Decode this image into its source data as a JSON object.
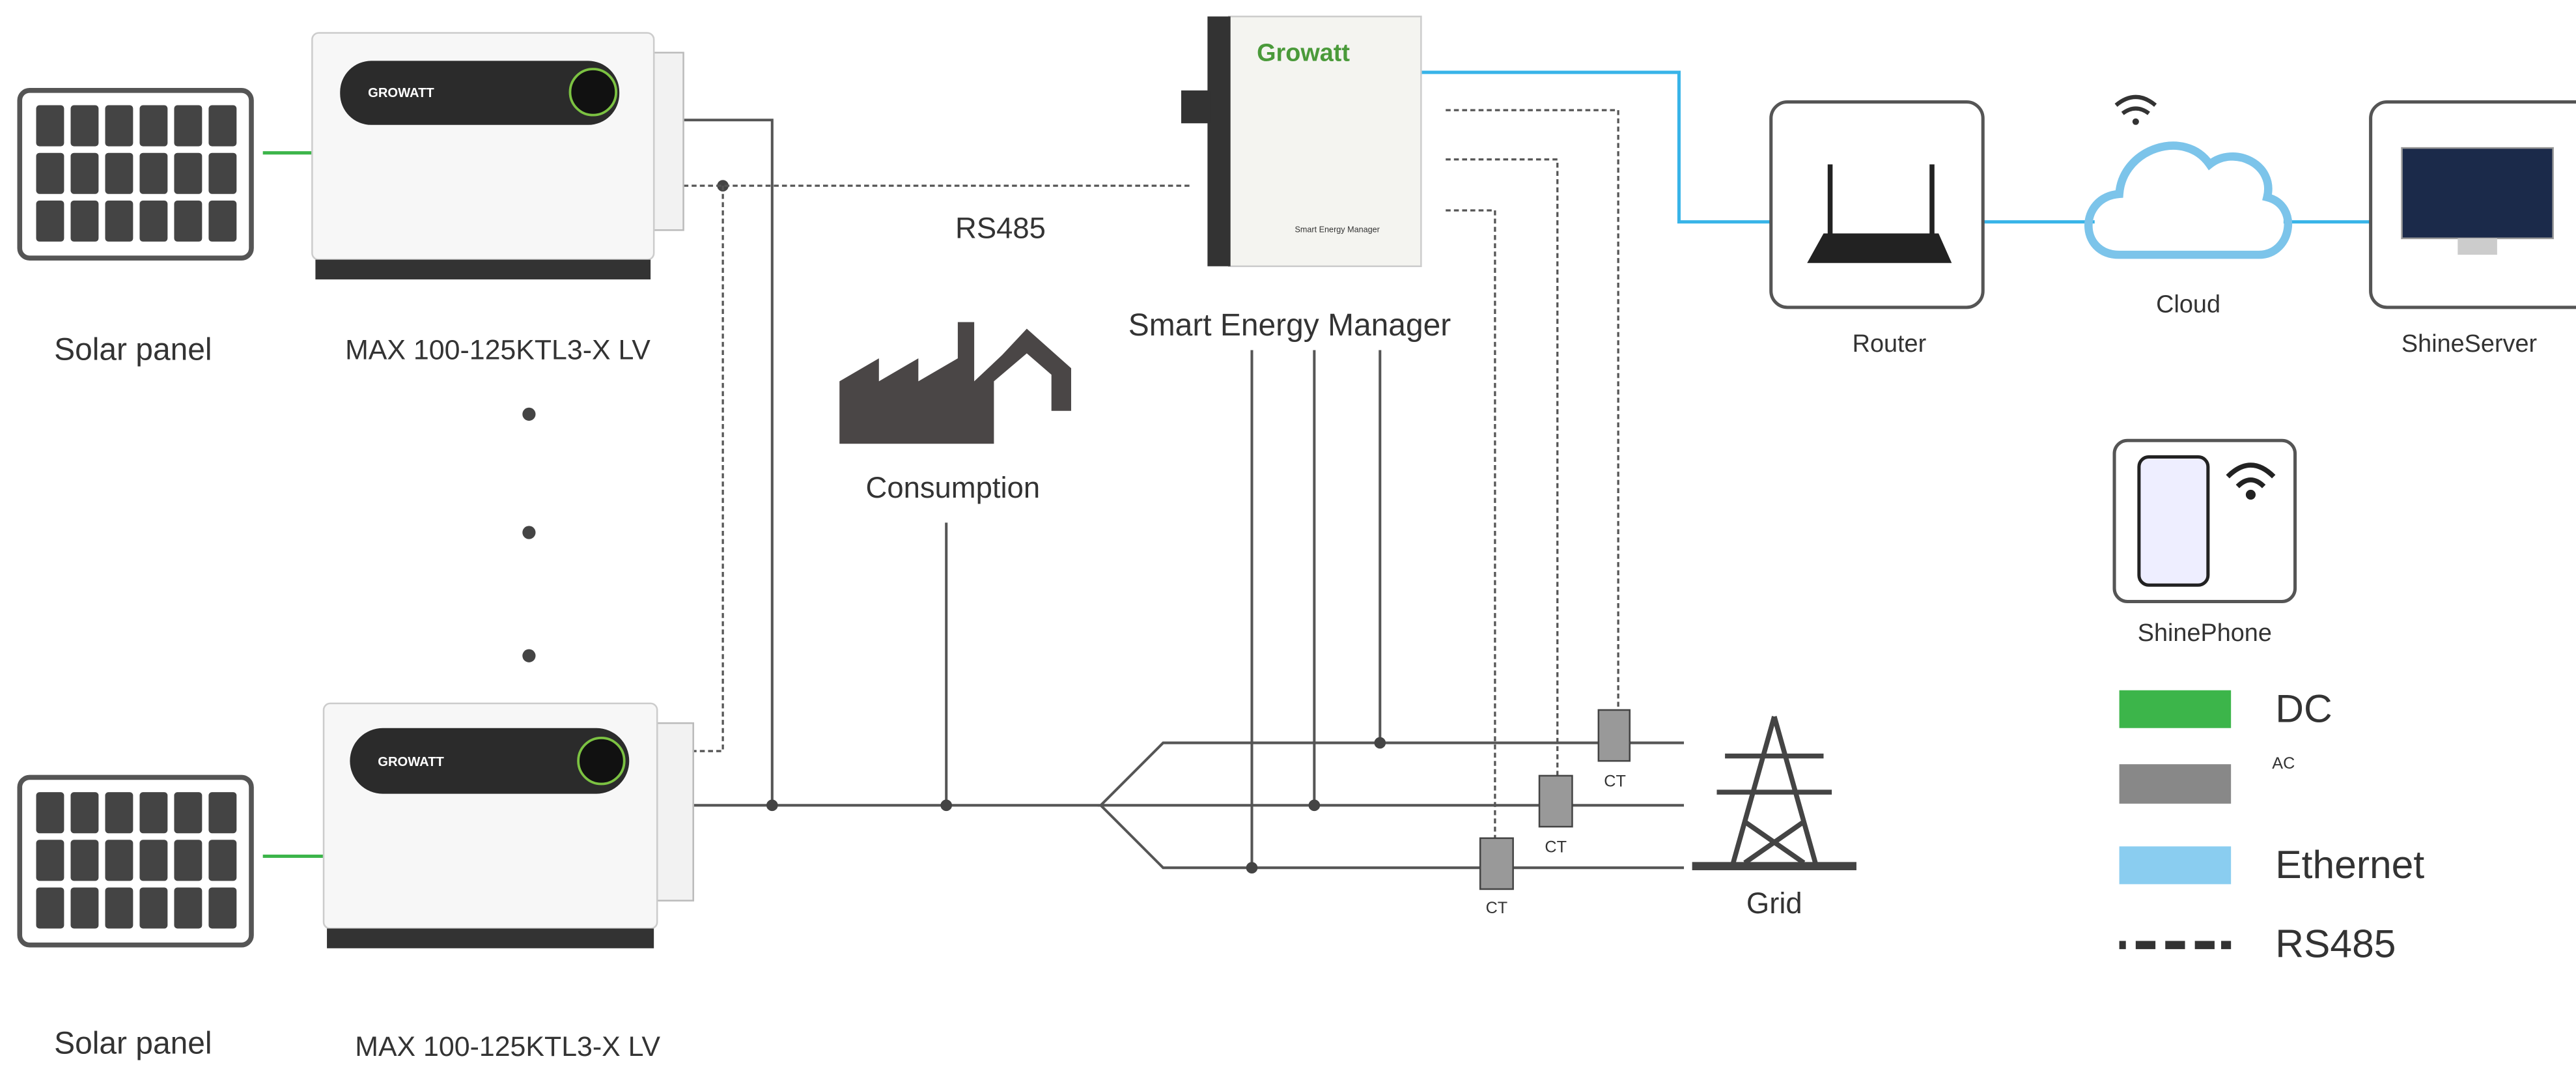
{
  "inverters": [
    {
      "panel_label": "Solar panel",
      "model": "MAX 100-125KTL3-X LV",
      "brand": "GROWATT"
    },
    {
      "panel_label": "Solar panel",
      "model": "MAX 100-125KTL3-X LV",
      "brand": "GROWATT"
    }
  ],
  "smart_energy_manager": {
    "brand": "Growatt",
    "device_label": "Smart Energy Manager",
    "label": "Smart Energy Manager"
  },
  "bus_label": "RS485",
  "consumption": "Consumption",
  "router": "Router",
  "cloud": "Cloud",
  "server": "ShineServer",
  "phone": "ShinePhone",
  "grid": "Grid",
  "ct_labels": [
    "CT",
    "CT",
    "CT"
  ],
  "legend": [
    {
      "label": "DC"
    },
    {
      "label": "AC"
    },
    {
      "label": "Ethernet"
    },
    {
      "label": "RS485"
    }
  ]
}
